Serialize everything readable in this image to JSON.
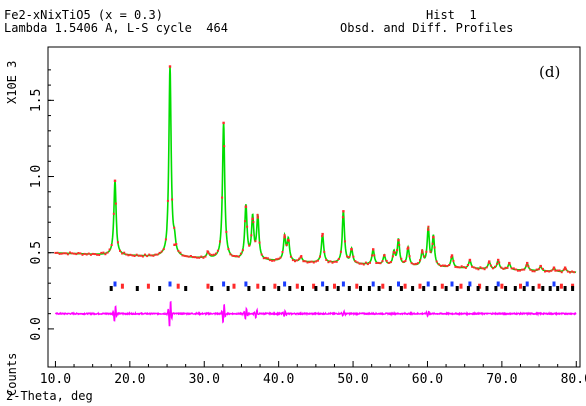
{
  "header": {
    "title_line1": "Fe2-xNixTiO5 (x = 0.3)",
    "title_line2": "Lambda 1.5406 A, L-S cycle  464",
    "hist": "Hist  1",
    "subtitle": "Obsd. and Diff. Profiles",
    "panel_label": "(d)"
  },
  "chart_data": {
    "type": "line",
    "title": "Fe2-xNixTiO5 (x = 0.3)",
    "xlabel": "2-Theta, deg",
    "ylabel_upper": "X10E 3",
    "ylabel_lower": "Counts",
    "xlim": [
      9,
      80.5
    ],
    "ylim": [
      -0.25,
      1.85
    ],
    "xticks": [
      10.0,
      20.0,
      30.0,
      40.0,
      50.0,
      60.0,
      70.0,
      80.0
    ],
    "xtick_labels": [
      "10.0",
      "20.0",
      "30.0",
      "40.0",
      "50.0",
      "60.0",
      "70.0",
      "80.0"
    ],
    "yticks_upper": [
      0.5,
      1.0,
      1.5
    ],
    "ytick_labels_upper": [
      "0.5",
      "1.0",
      "1.5"
    ],
    "yticks_lower": [
      0.0
    ],
    "ytick_labels_lower": [
      "0.0"
    ],
    "background_start": 0.5,
    "background_end": 0.37,
    "peaks": [
      {
        "x": 18.0,
        "y": 0.97
      },
      {
        "x": 25.4,
        "y": 1.72
      },
      {
        "x": 26.0,
        "y": 0.55
      },
      {
        "x": 30.5,
        "y": 0.5
      },
      {
        "x": 32.6,
        "y": 1.35
      },
      {
        "x": 35.6,
        "y": 0.8
      },
      {
        "x": 36.5,
        "y": 0.72
      },
      {
        "x": 37.2,
        "y": 0.73
      },
      {
        "x": 40.8,
        "y": 0.6
      },
      {
        "x": 41.3,
        "y": 0.58
      },
      {
        "x": 43.0,
        "y": 0.47
      },
      {
        "x": 45.9,
        "y": 0.62
      },
      {
        "x": 48.7,
        "y": 0.77
      },
      {
        "x": 49.8,
        "y": 0.52
      },
      {
        "x": 52.7,
        "y": 0.52
      },
      {
        "x": 54.2,
        "y": 0.48
      },
      {
        "x": 55.5,
        "y": 0.5
      },
      {
        "x": 56.1,
        "y": 0.58
      },
      {
        "x": 57.4,
        "y": 0.53
      },
      {
        "x": 59.3,
        "y": 0.5
      },
      {
        "x": 60.1,
        "y": 0.65
      },
      {
        "x": 60.8,
        "y": 0.6
      },
      {
        "x": 63.3,
        "y": 0.48
      },
      {
        "x": 65.7,
        "y": 0.45
      },
      {
        "x": 68.3,
        "y": 0.44
      },
      {
        "x": 69.5,
        "y": 0.45
      },
      {
        "x": 71.0,
        "y": 0.43
      },
      {
        "x": 73.4,
        "y": 0.43
      },
      {
        "x": 75.2,
        "y": 0.41
      },
      {
        "x": 77.0,
        "y": 0.4
      },
      {
        "x": 78.5,
        "y": 0.4
      }
    ],
    "tick_rows": [
      {
        "color": "#1a3cff",
        "y": 0.295,
        "positions": [
          18.0,
          25.4,
          32.6,
          35.6,
          40.8,
          45.9,
          48.7,
          52.7,
          56.1,
          60.1,
          63.3,
          65.7,
          69.5,
          73.4,
          77.0
        ]
      },
      {
        "color": "#ff2a2a",
        "y": 0.28,
        "positions": [
          19.0,
          22.5,
          26.5,
          30.5,
          34.0,
          37.2,
          39.5,
          42.5,
          44.7,
          47.5,
          50.5,
          54.0,
          57.0,
          59.0,
          62.0,
          64.5,
          67.0,
          70.0,
          72.5,
          75.0,
          78.0,
          79.5
        ]
      },
      {
        "color": "#000000",
        "y": 0.265,
        "positions": [
          17.5,
          21.0,
          24.0,
          27.5,
          31.0,
          33.2,
          36.0,
          38.0,
          40.0,
          41.5,
          43.2,
          45.0,
          46.5,
          48.0,
          49.5,
          51.0,
          52.2,
          53.5,
          55.0,
          56.5,
          58.0,
          59.5,
          61.0,
          62.5,
          64.0,
          65.5,
          66.8,
          68.0,
          69.2,
          70.5,
          71.8,
          73.0,
          74.2,
          75.5,
          76.5,
          77.5,
          78.5,
          79.5
        ]
      }
    ],
    "difference_baseline": 0.1,
    "difference_spikes": [
      {
        "x": 18.0,
        "amp": 0.06
      },
      {
        "x": 25.4,
        "amp": 0.1
      },
      {
        "x": 32.6,
        "amp": 0.07
      },
      {
        "x": 35.6,
        "amp": 0.04
      },
      {
        "x": 37.0,
        "amp": 0.03
      },
      {
        "x": 40.8,
        "amp": 0.02
      },
      {
        "x": 48.7,
        "amp": 0.02
      },
      {
        "x": 60.1,
        "amp": 0.02
      }
    ],
    "series": [
      {
        "name": "Obsd.",
        "color": "#ff2a2a",
        "style": "markers"
      },
      {
        "name": "Calc.",
        "color": "#00dd00",
        "style": "line"
      },
      {
        "name": "Diff.",
        "color": "#ff00ff",
        "style": "line"
      }
    ]
  }
}
